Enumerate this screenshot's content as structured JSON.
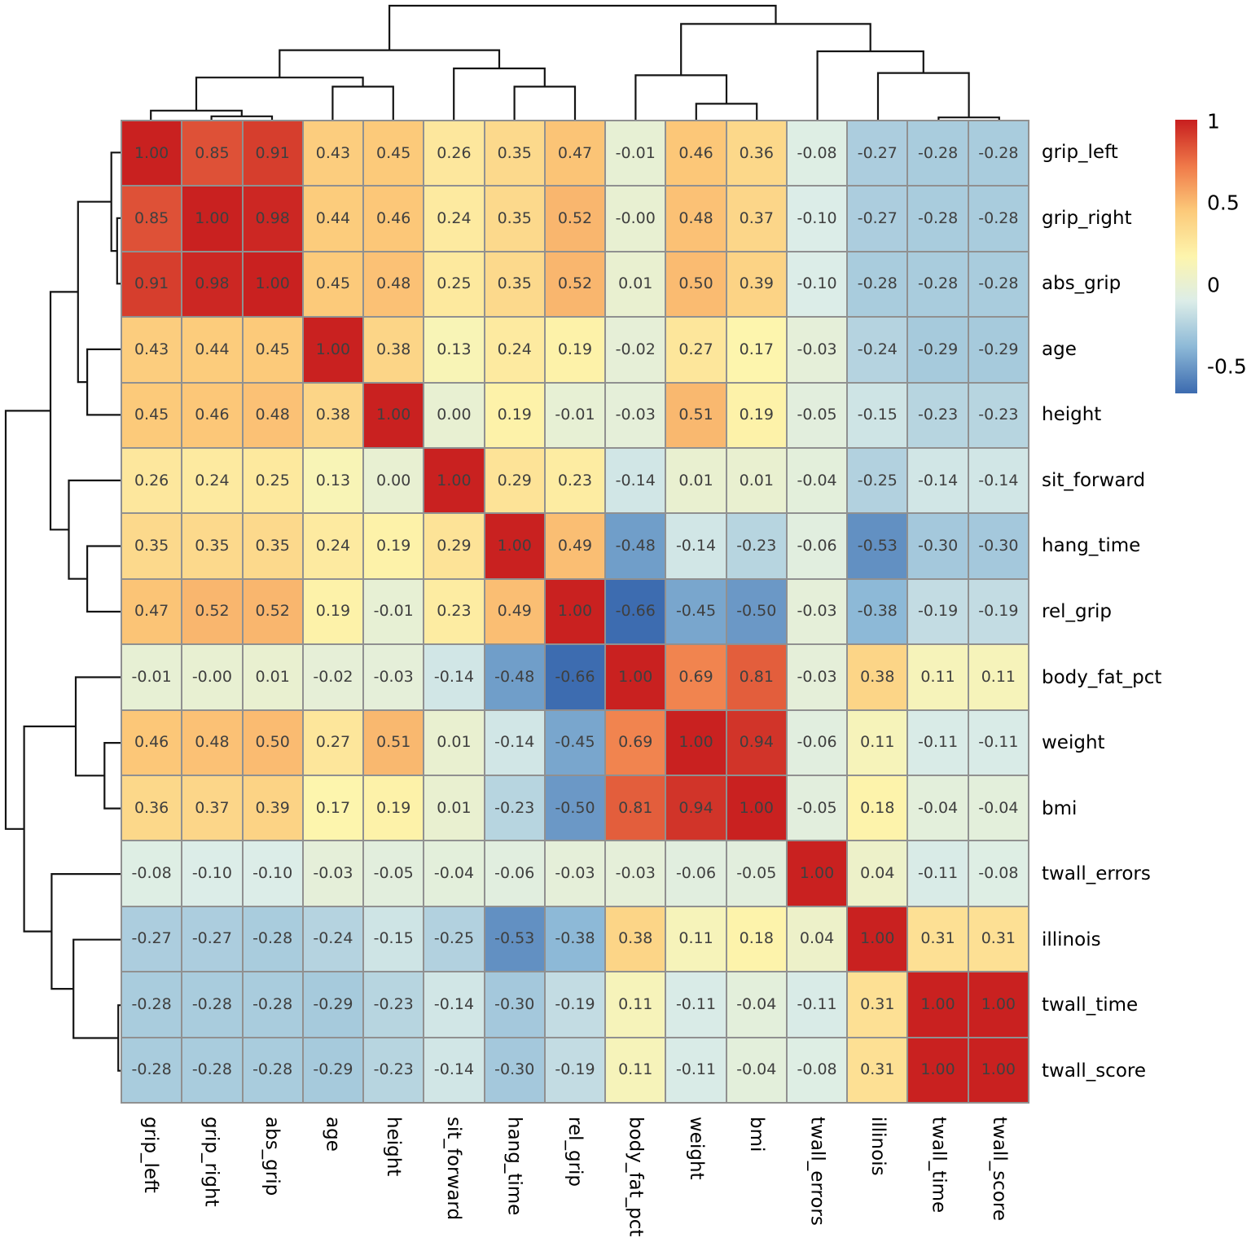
{
  "chart_data": {
    "type": "heatmap",
    "title": "",
    "description": "Hierarchically clustered correlation heatmap with row and column dendrograms and value annotations",
    "labels": [
      "grip_left",
      "grip_right",
      "abs_grip",
      "age",
      "height",
      "sit_forward",
      "hang_time",
      "rel_grip",
      "body_fat_pct",
      "weight",
      "bmi",
      "twall_errors",
      "illinois",
      "twall_time",
      "twall_score"
    ],
    "matrix": [
      [
        "1.00",
        "0.85",
        "0.91",
        "0.43",
        "0.45",
        "0.26",
        "0.35",
        "0.47",
        "-0.01",
        "0.46",
        "0.36",
        "-0.08",
        "-0.27",
        "-0.28",
        "-0.28"
      ],
      [
        "0.85",
        "1.00",
        "0.98",
        "0.44",
        "0.46",
        "0.24",
        "0.35",
        "0.52",
        "-0.00",
        "0.48",
        "0.37",
        "-0.10",
        "-0.27",
        "-0.28",
        "-0.28"
      ],
      [
        "0.91",
        "0.98",
        "1.00",
        "0.45",
        "0.48",
        "0.25",
        "0.35",
        "0.52",
        "0.01",
        "0.50",
        "0.39",
        "-0.10",
        "-0.28",
        "-0.28",
        "-0.28"
      ],
      [
        "0.43",
        "0.44",
        "0.45",
        "1.00",
        "0.38",
        "0.13",
        "0.24",
        "0.19",
        "-0.02",
        "0.27",
        "0.17",
        "-0.03",
        "-0.24",
        "-0.29",
        "-0.29"
      ],
      [
        "0.45",
        "0.46",
        "0.48",
        "0.38",
        "1.00",
        "0.00",
        "0.19",
        "-0.01",
        "-0.03",
        "0.51",
        "0.19",
        "-0.05",
        "-0.15",
        "-0.23",
        "-0.23"
      ],
      [
        "0.26",
        "0.24",
        "0.25",
        "0.13",
        "0.00",
        "1.00",
        "0.29",
        "0.23",
        "-0.14",
        "0.01",
        "0.01",
        "-0.04",
        "-0.25",
        "-0.14",
        "-0.14"
      ],
      [
        "0.35",
        "0.35",
        "0.35",
        "0.24",
        "0.19",
        "0.29",
        "1.00",
        "0.49",
        "-0.48",
        "-0.14",
        "-0.23",
        "-0.06",
        "-0.53",
        "-0.30",
        "-0.30"
      ],
      [
        "0.47",
        "0.52",
        "0.52",
        "0.19",
        "-0.01",
        "0.23",
        "0.49",
        "1.00",
        "-0.66",
        "-0.45",
        "-0.50",
        "-0.03",
        "-0.38",
        "-0.19",
        "-0.19"
      ],
      [
        "-0.01",
        "-0.00",
        "0.01",
        "-0.02",
        "-0.03",
        "-0.14",
        "-0.48",
        "-0.66",
        "1.00",
        "0.69",
        "0.81",
        "-0.03",
        "0.38",
        "0.11",
        "0.11"
      ],
      [
        "0.46",
        "0.48",
        "0.50",
        "0.27",
        "0.51",
        "0.01",
        "-0.14",
        "-0.45",
        "0.69",
        "1.00",
        "0.94",
        "-0.06",
        "0.11",
        "-0.11",
        "-0.11"
      ],
      [
        "0.36",
        "0.37",
        "0.39",
        "0.17",
        "0.19",
        "0.01",
        "-0.23",
        "-0.50",
        "0.81",
        "0.94",
        "1.00",
        "-0.05",
        "0.18",
        "-0.04",
        "-0.04"
      ],
      [
        "-0.08",
        "-0.10",
        "-0.10",
        "-0.03",
        "-0.05",
        "-0.04",
        "-0.06",
        "-0.03",
        "-0.03",
        "-0.06",
        "-0.05",
        "1.00",
        "0.04",
        "-0.11",
        "-0.08"
      ],
      [
        "-0.27",
        "-0.27",
        "-0.28",
        "-0.24",
        "-0.15",
        "-0.25",
        "-0.53",
        "-0.38",
        "0.38",
        "0.11",
        "0.18",
        "0.04",
        "1.00",
        "0.31",
        "0.31"
      ],
      [
        "-0.28",
        "-0.28",
        "-0.28",
        "-0.29",
        "-0.23",
        "-0.14",
        "-0.30",
        "-0.19",
        "0.11",
        "-0.11",
        "-0.04",
        "-0.11",
        "0.31",
        "1.00",
        "1.00"
      ],
      [
        "-0.28",
        "-0.28",
        "-0.28",
        "-0.29",
        "-0.23",
        "-0.14",
        "-0.30",
        "-0.19",
        "0.11",
        "-0.11",
        "-0.04",
        "-0.08",
        "0.31",
        "1.00",
        "1.00"
      ]
    ],
    "colormap": {
      "name": "RdYlBu reversed ramp",
      "anchors": [
        {
          "value": -0.66,
          "color": "#3d6cb0"
        },
        {
          "value": -0.38,
          "color": "#8db9d7"
        },
        {
          "value": -0.1,
          "color": "#dcede8"
        },
        {
          "value": 0.17,
          "color": "#fdf5ad"
        },
        {
          "value": 0.45,
          "color": "#fcca7a"
        },
        {
          "value": 0.72,
          "color": "#f07b4a"
        },
        {
          "value": 1.0,
          "color": "#c92120"
        }
      ]
    },
    "colorbar": {
      "domain_top": 1.01,
      "domain_bottom": -0.665,
      "ticks": [
        {
          "label": "1",
          "value": 1.0
        },
        {
          "label": "0.5",
          "value": 0.5
        },
        {
          "label": "0",
          "value": 0.0
        },
        {
          "label": "-0.5",
          "value": -0.5
        }
      ]
    },
    "dendrogram": {
      "note": "Same linkage applied to rows and columns; h is merge height as fraction of dendrogram depth; L=leaf index, M=prior merge index",
      "merges": [
        {
          "a": "L1",
          "b": "L2",
          "h": 0.03
        },
        {
          "a": "L0",
          "b": "M0",
          "h": 0.08
        },
        {
          "a": "L3",
          "b": "L4",
          "h": 0.29
        },
        {
          "a": "M1",
          "b": "M2",
          "h": 0.37
        },
        {
          "a": "L6",
          "b": "L7",
          "h": 0.29
        },
        {
          "a": "L5",
          "b": "M4",
          "h": 0.45
        },
        {
          "a": "M3",
          "b": "M5",
          "h": 0.61
        },
        {
          "a": "L9",
          "b": "L10",
          "h": 0.14
        },
        {
          "a": "L8",
          "b": "M7",
          "h": 0.39
        },
        {
          "a": "L13",
          "b": "L14",
          "h": 0.02
        },
        {
          "a": "L12",
          "b": "M9",
          "h": 0.41
        },
        {
          "a": "L11",
          "b": "M10",
          "h": 0.6
        },
        {
          "a": "M8",
          "b": "M11",
          "h": 0.84
        },
        {
          "a": "M6",
          "b": "M12",
          "h": 1.0
        }
      ]
    },
    "style": {
      "grid_color": "#909090",
      "dendrogram_line_color": "#141414",
      "value_text_color": "#3f3f3f",
      "label_text_color": "#000000",
      "background": "#ffffff"
    },
    "legend_position": "right",
    "grid": true
  }
}
